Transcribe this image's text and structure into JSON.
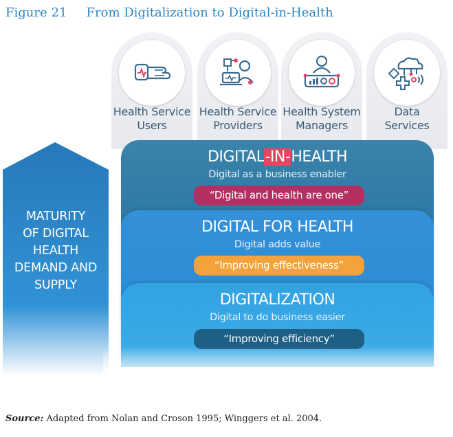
{
  "figure": {
    "label": "Figure",
    "number": "21",
    "title": "From Digitalization to Digital-in-Health"
  },
  "stakeholders": [
    {
      "line1": "Health Service",
      "line2": "Users",
      "icon": "smartwatch-hand-icon"
    },
    {
      "line1": "Health Service",
      "line2": "Providers",
      "icon": "doctor-laptop-icon"
    },
    {
      "line1": "Health System",
      "line2": "Managers",
      "icon": "manager-dashboard-icon"
    },
    {
      "line1": "Data",
      "line2": "Services",
      "icon": "cloud-network-icon"
    }
  ],
  "maturity_arrow": {
    "lines": [
      "MATURITY",
      "OF DIGITAL",
      "HEALTH",
      "DEMAND AND",
      "SUPPLY"
    ],
    "color": "#2a7fc0"
  },
  "layers": {
    "top": {
      "title_prefix": "DIGITAL",
      "title_highlight": "-IN-",
      "title_suffix": "HEALTH",
      "subtitle": "Digital as a business enabler",
      "pill": "“Digital and health are one”",
      "pill_color": "#b43061"
    },
    "middle": {
      "title": "DIGITAL FOR HEALTH",
      "subtitle": "Digital adds value",
      "pill": "“Improving effectiveness”",
      "pill_color": "#f4a23b"
    },
    "bottom": {
      "title": "DIGITALIZATION",
      "subtitle": "Digital to do business easier",
      "pill": "“Improving efficiency”",
      "pill_color": "#1e5f86"
    }
  },
  "source": {
    "label": "Source:",
    "text": " Adapted from Nolan and Croson 1995; Winggers et al. 2004."
  }
}
